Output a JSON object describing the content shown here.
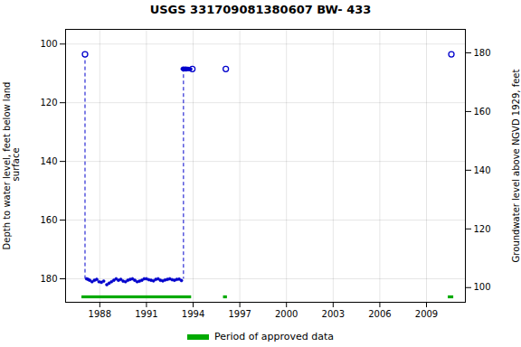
{
  "chart_data": {
    "type": "scatter",
    "title": "USGS 331709081380607 BW- 433",
    "ylabel": "Depth to water level, feet below land\n surface",
    "y2label": "Groundwater level above NGVD 1929, feet",
    "xlim": [
      1985.8,
      2011.5
    ],
    "xticks": [
      1988,
      1991,
      1994,
      1997,
      2000,
      2003,
      2006,
      2009
    ],
    "ylim": [
      188,
      95
    ],
    "yticks": [
      100,
      120,
      140,
      160,
      180
    ],
    "y2lim": [
      95,
      188
    ],
    "y2ticks": [
      100,
      120,
      140,
      160,
      180
    ],
    "grid": true,
    "legend": "bottom",
    "series": [
      {
        "type": "rule",
        "line_style": "dashed",
        "color": "#0000cc",
        "x": [
          1987.05,
          1993.38
        ],
        "y_top": [
          103.5,
          108.3
        ],
        "y_bottom": [
          180.0,
          180.1
        ]
      },
      {
        "type": "scatter",
        "marker": "open_circle",
        "color": "#0000cc",
        "x": [
          1987.05,
          1993.95,
          1996.1,
          2010.6
        ],
        "values": [
          103.5,
          108.5,
          108.5,
          103.5
        ]
      },
      {
        "type": "scatter",
        "marker": "circle",
        "color": "#0000cc",
        "x": [
          1987.15,
          1987.25,
          1987.35,
          1987.5,
          1987.65,
          1987.8,
          1987.95,
          1988.1,
          1988.25,
          1988.45,
          1988.6,
          1988.75,
          1988.9,
          1989.05,
          1989.2,
          1989.35,
          1989.5,
          1989.65,
          1989.8,
          1989.95,
          1990.1,
          1990.25,
          1990.4,
          1990.55,
          1990.7,
          1990.85,
          1991.0,
          1991.15,
          1991.3,
          1991.45,
          1991.6,
          1991.75,
          1991.9,
          1992.05,
          1992.2,
          1992.35,
          1992.5,
          1992.65,
          1992.8,
          1992.95,
          1993.1,
          1993.25
        ],
        "values": [
          180.0,
          180.2,
          180.5,
          181.0,
          180.5,
          180.2,
          181.0,
          181.2,
          180.8,
          182.0,
          181.5,
          181.0,
          180.5,
          180.0,
          180.5,
          180.2,
          180.8,
          181.0,
          180.5,
          180.2,
          180.0,
          180.5,
          181.0,
          180.8,
          180.5,
          180.0,
          180.0,
          180.3,
          180.5,
          180.7,
          180.2,
          180.0,
          180.5,
          180.7,
          180.4,
          180.2,
          180.0,
          180.3,
          180.5,
          180.2,
          180.1,
          180.6
        ]
      },
      {
        "type": "scatter",
        "marker": "circle",
        "color": "#0000cc",
        "x": [
          1993.3,
          1993.32,
          1993.34,
          1993.36,
          1993.38,
          1993.4,
          1993.42,
          1993.44,
          1993.46,
          1993.48,
          1993.5,
          1993.52,
          1993.54,
          1993.56,
          1993.58,
          1993.6,
          1993.62,
          1993.64,
          1993.66,
          1993.68,
          1993.7,
          1993.72,
          1993.75,
          1993.8,
          1993.85
        ],
        "values": [
          108.5,
          108.3,
          108.7,
          108.5,
          108.2,
          108.8,
          108.5,
          108.3,
          108.6,
          108.4,
          108.5,
          108.2,
          108.8,
          108.5,
          108.3,
          108.6,
          108.4,
          108.5,
          108.3,
          108.7,
          108.5,
          108.4,
          108.5,
          108.7,
          108.5
        ]
      },
      {
        "type": "bar",
        "name": "Period of approved data",
        "color": "#00aa00",
        "x_start": [
          1986.85,
          1995.95,
          2010.4
        ],
        "x_end": [
          1993.9,
          1996.2,
          2010.75
        ],
        "y": 185.8,
        "height": 1.0
      }
    ]
  }
}
